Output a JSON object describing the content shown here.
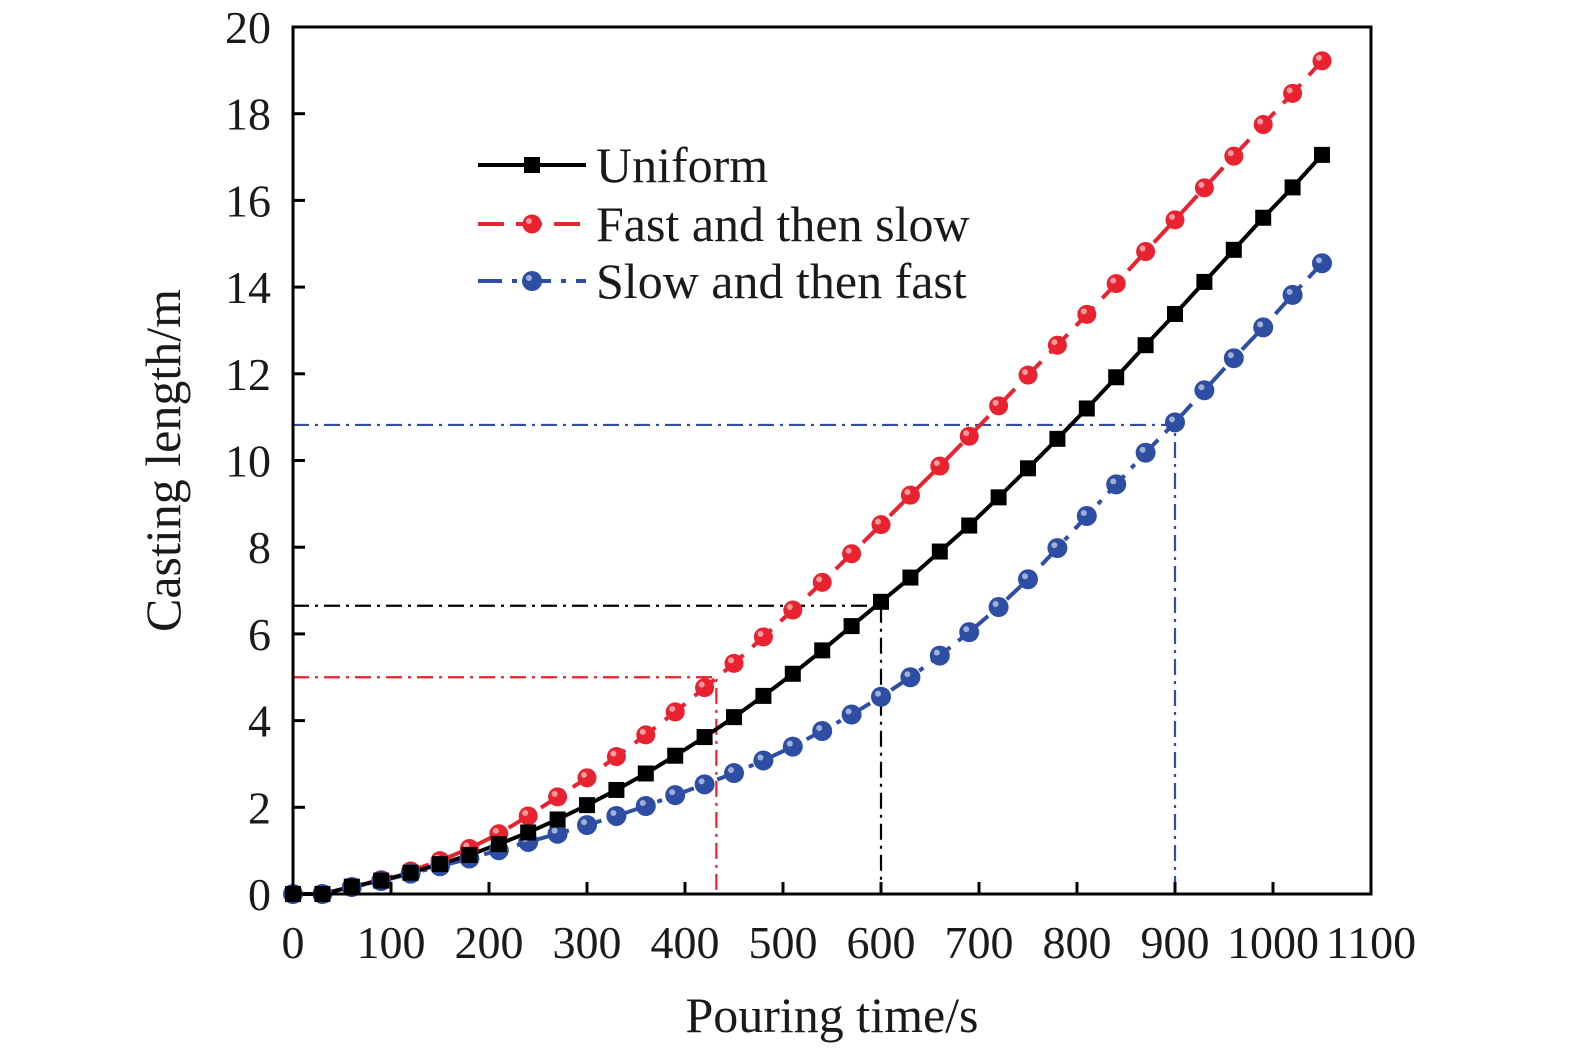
{
  "chart_data": {
    "type": "line",
    "title": "",
    "xlabel": "Pouring time/s",
    "ylabel": "Casting length/m",
    "xlim": [
      0,
      1100
    ],
    "ylim": [
      0,
      20
    ],
    "xticks": [
      0,
      100,
      200,
      300,
      400,
      500,
      600,
      700,
      800,
      900,
      1000,
      1100
    ],
    "yticks": [
      0,
      2,
      4,
      6,
      8,
      10,
      12,
      14,
      16,
      18,
      20
    ],
    "grid": false,
    "legend_position": "top-left",
    "x": [
      0,
      30,
      60,
      90,
      120,
      150,
      180,
      210,
      240,
      270,
      300,
      330,
      360,
      390,
      420,
      450,
      480,
      510,
      540,
      570,
      600,
      630,
      660,
      690,
      720,
      750,
      780,
      810,
      840,
      870,
      900,
      930,
      960,
      990,
      1020,
      1050
    ],
    "series": [
      {
        "name": "Uniform",
        "color": "#000000",
        "line_style": "solid",
        "marker": "square",
        "values": [
          0,
          0,
          0.17,
          0.31,
          0.49,
          0.69,
          0.9,
          1.15,
          1.42,
          1.72,
          2.05,
          2.4,
          2.78,
          3.19,
          3.62,
          4.08,
          4.57,
          5.08,
          5.62,
          6.18,
          6.74,
          7.3,
          7.9,
          8.5,
          9.15,
          9.82,
          10.5,
          11.2,
          11.92,
          12.66,
          13.38,
          14.12,
          14.86,
          15.6,
          16.3,
          17.05
        ]
      },
      {
        "name": "Fast and then slow",
        "color": "#e8222e",
        "line_style": "dashed",
        "marker": "circle",
        "values": [
          0,
          0,
          0.17,
          0.33,
          0.53,
          0.77,
          1.05,
          1.39,
          1.8,
          2.24,
          2.68,
          3.17,
          3.67,
          4.2,
          4.76,
          5.32,
          5.93,
          6.55,
          7.19,
          7.85,
          8.52,
          9.2,
          9.87,
          10.56,
          11.26,
          11.97,
          12.66,
          13.37,
          14.08,
          14.82,
          15.55,
          16.29,
          17.02,
          17.75,
          18.47,
          19.22
        ]
      },
      {
        "name": "Slow and then fast",
        "color": "#2e4ea3",
        "line_style": "dashdot",
        "marker": "circle",
        "values": [
          0,
          0,
          0.16,
          0.3,
          0.47,
          0.64,
          0.82,
          1.01,
          1.2,
          1.39,
          1.59,
          1.8,
          2.03,
          2.28,
          2.53,
          2.79,
          3.08,
          3.4,
          3.76,
          4.14,
          4.55,
          5.0,
          5.5,
          6.04,
          6.62,
          7.26,
          7.98,
          8.72,
          9.45,
          10.18,
          10.88,
          11.62,
          12.36,
          13.07,
          13.82,
          14.55
        ]
      }
    ],
    "reference_lines": [
      {
        "color": "#e8222e",
        "x": 432,
        "y": 5.0
      },
      {
        "color": "#000000",
        "x": 600,
        "y": 6.65
      },
      {
        "color": "#2e4ea3",
        "x": 900,
        "y": 10.82
      }
    ]
  }
}
